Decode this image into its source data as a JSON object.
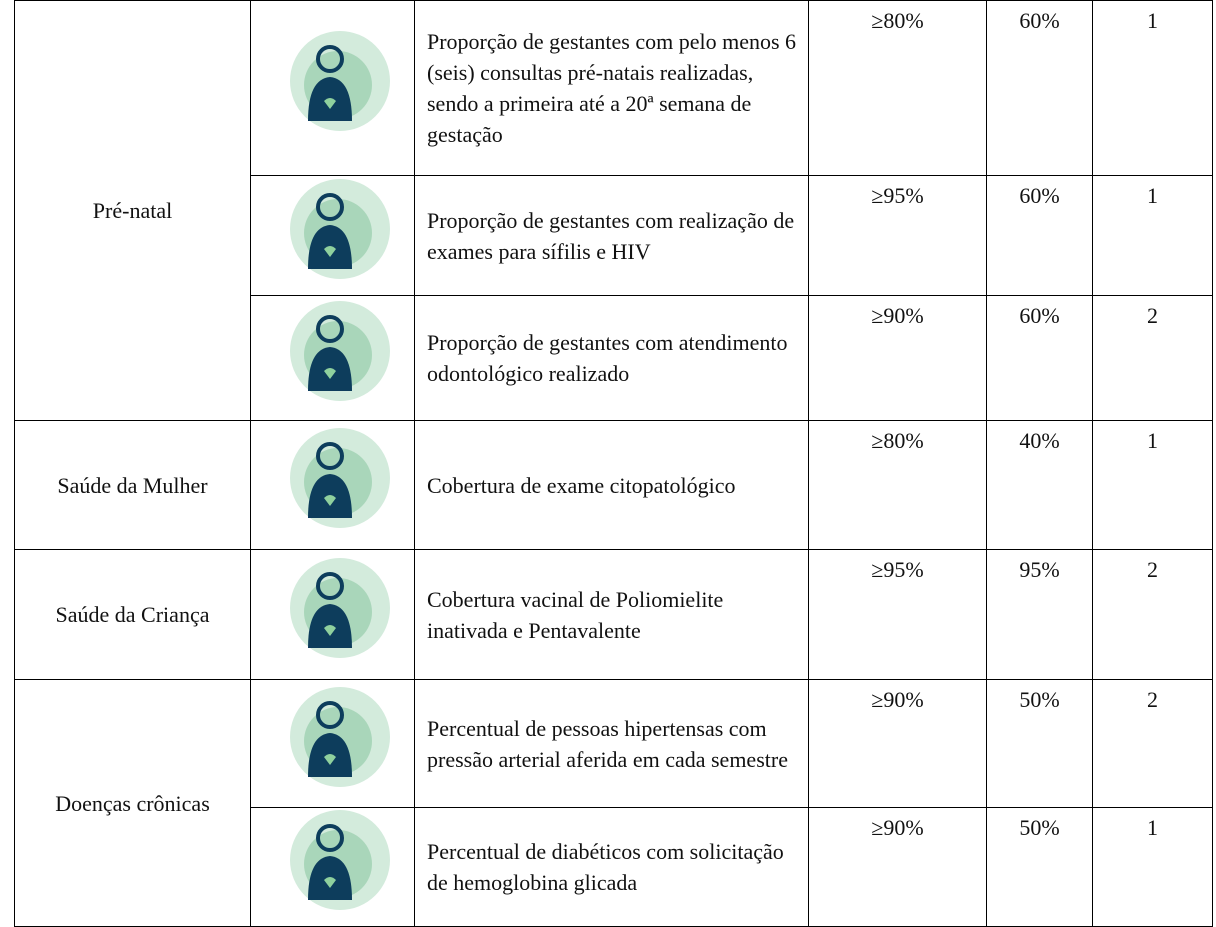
{
  "table": {
    "groups": [
      {
        "name": "Pré-natal",
        "rows": [
          {
            "indicator": "Proporção de gestantes com pelo menos 6 (seis) consultas pré-natais realizadas, sendo a primeira até a 20ª semana de gestação",
            "target": "≥80%",
            "value": "60%",
            "weight": "1"
          },
          {
            "indicator": "Proporção de gestantes com realização de exames para sífilis e HIV",
            "target": "≥95%",
            "value": "60%",
            "weight": "1"
          },
          {
            "indicator": "Proporção de gestantes com atendimento odontológico realizado",
            "target": "≥90%",
            "value": "60%",
            "weight": "2"
          }
        ]
      },
      {
        "name": "Saúde da Mulher",
        "rows": [
          {
            "indicator": "Cobertura de exame citopatológico",
            "target": "≥80%",
            "value": "40%",
            "weight": "1"
          }
        ]
      },
      {
        "name": "Saúde da Criança",
        "rows": [
          {
            "indicator": "Cobertura vacinal de Poliomielite inativada e Pentavalente",
            "target": "≥95%",
            "value": "95%",
            "weight": "2"
          }
        ]
      },
      {
        "name": "Doenças crônicas",
        "rows": [
          {
            "indicator": "Percentual de pessoas hipertensas com pressão arterial aferida em cada semestre",
            "target": "≥90%",
            "value": "50%",
            "weight": "2"
          },
          {
            "indicator": "Percentual de diabéticos com solicitação de hemoglobina glicada",
            "target": "≥90%",
            "value": "50%",
            "weight": "1"
          }
        ]
      }
    ]
  }
}
